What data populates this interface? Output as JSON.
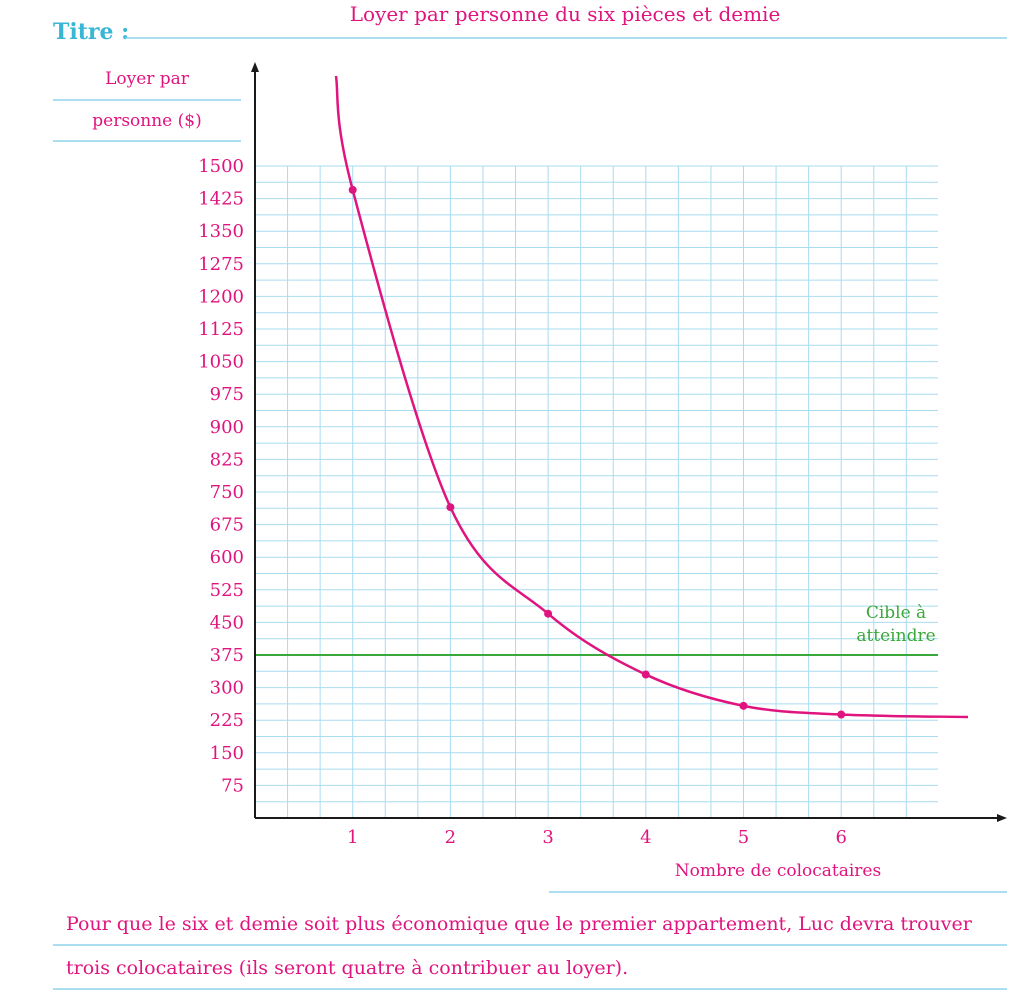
{
  "colors": {
    "accent": "#e0147e",
    "grid": "#a9dcf0",
    "rule": "#8fd3ec",
    "target": "#3aa83a",
    "title_label": "#38b6d4",
    "axis": "#1a1a1a"
  },
  "header": {
    "label": "Titre :",
    "title": "Loyer par personne du six pièces et demie"
  },
  "chart_data": {
    "type": "line",
    "title": "Loyer par personne du six pièces et demie",
    "ylabel_line1": "Loyer par",
    "ylabel_line2": "personne ($)",
    "xlabel": "Nombre de colocataires",
    "x_ticks": [
      "1",
      "2",
      "3",
      "4",
      "5",
      "6"
    ],
    "y_ticks": [
      "75",
      "150",
      "225",
      "300",
      "375",
      "450",
      "525",
      "600",
      "675",
      "750",
      "825",
      "900",
      "975",
      "1050",
      "1125",
      "1200",
      "1275",
      "1350",
      "1425",
      "1500"
    ],
    "xlim": [
      0,
      7
    ],
    "ylim": [
      0,
      1500
    ],
    "grid": true,
    "series": [
      {
        "x": [
          1,
          2,
          3,
          4,
          5,
          6
        ],
        "values": [
          1445,
          715,
          470,
          330,
          258,
          238
        ]
      }
    ],
    "target_line": {
      "y": 375,
      "label_line1": "Cible à",
      "label_line2": "atteindre"
    }
  },
  "answer": {
    "line1": "Pour que le six et demie soit plus économique que le premier appartement, Luc devra trouver",
    "line2": "trois colocataires (ils seront quatre à contribuer au loyer)."
  }
}
